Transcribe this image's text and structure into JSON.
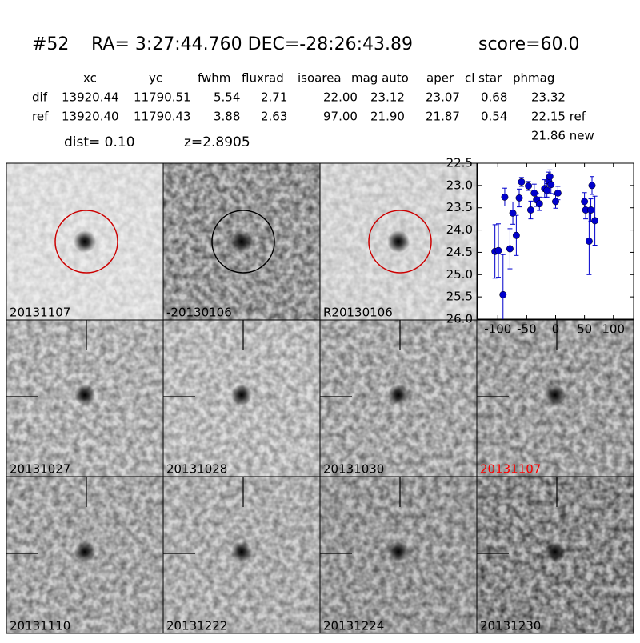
{
  "header": {
    "id": "#52",
    "coords": "RA= 3:27:44.760 DEC=-28:26:43.89",
    "score": "score=60.0"
  },
  "table": {
    "columns": [
      "xc",
      "yc",
      "fwhm",
      "fluxrad",
      "isoarea",
      "mag auto",
      "aper",
      "cl star",
      "phmag"
    ],
    "rows": [
      [
        "dif",
        "13920.44",
        "11790.51",
        "5.54",
        "2.71",
        "22.00",
        "23.12",
        "23.07",
        "0.68",
        "23.32"
      ],
      [
        "ref",
        "13920.40",
        "11790.43",
        "3.88",
        "2.63",
        "97.00",
        "21.90",
        "21.87",
        "0.54",
        "22.15 ref"
      ]
    ],
    "extra": "21.86 new"
  },
  "dist": "dist=  0.10",
  "z": "z=2.8905",
  "stamps": [
    "20131107",
    "-20130106",
    "R20130106",
    "20131027",
    "20131028",
    "20131030",
    "20131107",
    "20131110",
    "20131222",
    "20131224",
    "20131230"
  ],
  "chart_data": {
    "type": "scatter",
    "color": "#0000cc",
    "x": [
      -105,
      -99,
      -91,
      -88,
      -79,
      -74,
      -68,
      -63,
      -59,
      -47,
      -43,
      -37,
      -33,
      -28,
      -19,
      -15,
      -12,
      -10,
      -8,
      0,
      4,
      50,
      52,
      58,
      61,
      63,
      68
    ],
    "values": [
      24.48,
      24.46,
      25.45,
      23.26,
      24.42,
      23.62,
      24.12,
      23.28,
      22.92,
      23.01,
      23.55,
      23.17,
      23.32,
      23.41,
      23.07,
      23.11,
      22.9,
      22.8,
      22.98,
      23.36,
      23.17,
      23.36,
      23.55,
      24.25,
      23.55,
      23.0,
      23.79
    ],
    "errors": [
      0.6,
      0.6,
      0.9,
      0.2,
      0.45,
      0.25,
      0.45,
      0.2,
      0.1,
      0.1,
      0.2,
      0.2,
      0.15,
      0.15,
      0.2,
      0.15,
      0.2,
      0.15,
      0.2,
      0.15,
      0.15,
      0.2,
      0.2,
      0.75,
      0.25,
      0.2,
      0.55
    ],
    "xlim": [
      -135,
      135
    ],
    "ylim": [
      26,
      22.5
    ],
    "xticks": [
      -100,
      -50,
      0,
      50,
      100
    ],
    "yticks": [
      {
        "value": 22.5,
        "label": "22.5"
      },
      {
        "value": 23,
        "label": "23.0"
      },
      {
        "value": 23.5,
        "label": "23.5"
      },
      {
        "value": 24,
        "label": "24.0"
      },
      {
        "value": 24.5,
        "label": "24.5"
      },
      {
        "value": 25,
        "label": "25.0"
      },
      {
        "value": 25.5,
        "label": "25.5"
      },
      {
        "value": 26,
        "label": "26.0"
      }
    ]
  }
}
